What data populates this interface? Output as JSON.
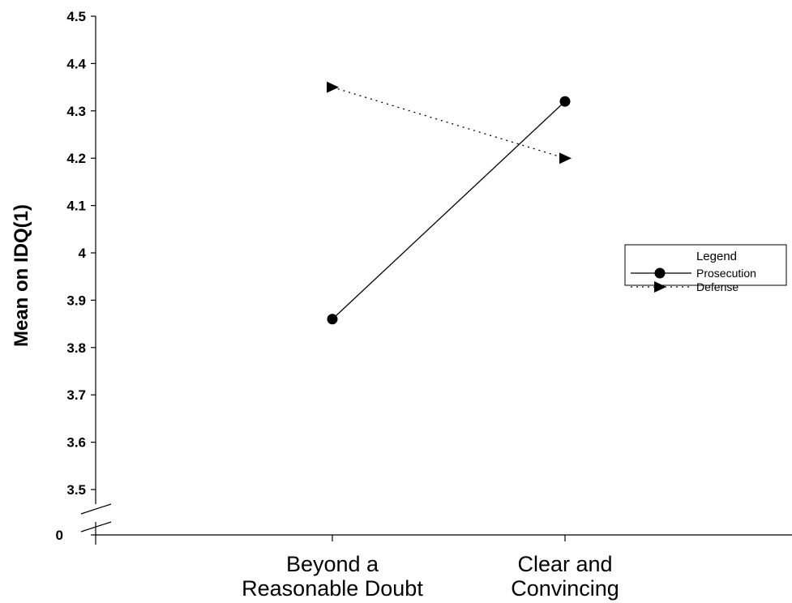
{
  "chart_data": {
    "type": "line",
    "title": "",
    "xlabel": "",
    "ylabel": "Mean on IDQ(1)",
    "categories": [
      "Beyond a\nReasonable Doubt",
      "Clear and\nConvincing"
    ],
    "ylim": [
      3.5,
      4.5
    ],
    "y_ticks": [
      "4.5",
      "4.4",
      "4.3",
      "4.2",
      "4.1",
      "4",
      "3.9",
      "3.8",
      "3.7",
      "3.6",
      "3.5"
    ],
    "y_break": true,
    "y_break_label": "0",
    "grid": false,
    "series": [
      {
        "name": "Prosecution",
        "values": [
          3.86,
          4.32
        ],
        "marker": "circle",
        "line_style": "solid",
        "color": "#000000"
      },
      {
        "name": "Defense",
        "values": [
          4.35,
          4.2
        ],
        "marker": "triangle-right",
        "line_style": "dotted",
        "color": "#000000"
      }
    ],
    "legend": {
      "title": "Legend",
      "placement": "right"
    }
  }
}
